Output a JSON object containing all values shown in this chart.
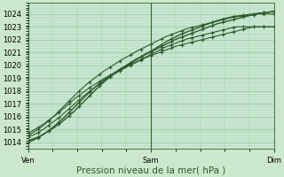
{
  "bg_color": "#cce8cc",
  "plot_bg_color": "#cce8d8",
  "grid_color": "#99cc99",
  "line_color": "#2d5a2d",
  "yticks": [
    1014,
    1015,
    1016,
    1017,
    1018,
    1019,
    1020,
    1021,
    1022,
    1023,
    1024
  ],
  "ylim": [
    1013.5,
    1024.8
  ],
  "xlim": [
    0,
    48
  ],
  "xlabel": "Pression niveau de la mer( hPa )",
  "xtick_labels": [
    "Ven",
    "Sam",
    "Dim"
  ],
  "xtick_positions": [
    0,
    24,
    48
  ],
  "vline_positions": [
    0,
    24,
    48
  ],
  "series": [
    [
      1014.1,
      1014.25,
      1014.4,
      1014.6,
      1014.85,
      1015.1,
      1015.4,
      1015.7,
      1016.05,
      1016.4,
      1016.8,
      1017.2,
      1017.6,
      1018.0,
      1018.4,
      1018.75,
      1019.1,
      1019.4,
      1019.65,
      1019.9,
      1020.15,
      1020.4,
      1020.65,
      1020.9,
      1021.1,
      1021.35,
      1021.6,
      1021.85,
      1022.05,
      1022.25,
      1022.45,
      1022.6,
      1022.75,
      1022.9,
      1023.05,
      1023.2,
      1023.35,
      1023.5,
      1023.6,
      1023.7,
      1023.8,
      1023.85,
      1023.9,
      1023.95,
      1024.0,
      1024.05,
      1024.1,
      1024.15,
      1024.2
    ],
    [
      1014.4,
      1014.55,
      1014.75,
      1015.0,
      1015.3,
      1015.6,
      1015.9,
      1016.25,
      1016.6,
      1016.95,
      1017.3,
      1017.65,
      1017.95,
      1018.25,
      1018.55,
      1018.85,
      1019.1,
      1019.35,
      1019.6,
      1019.85,
      1020.05,
      1020.25,
      1020.45,
      1020.65,
      1020.85,
      1021.05,
      1021.25,
      1021.45,
      1021.6,
      1021.75,
      1021.9,
      1022.05,
      1022.15,
      1022.25,
      1022.35,
      1022.45,
      1022.55,
      1022.65,
      1022.75,
      1022.85,
      1022.95,
      1023.0,
      1023.0,
      1023.0,
      1023.0,
      1023.0,
      1023.0,
      1023.0,
      1023.0
    ],
    [
      1014.7,
      1014.9,
      1015.15,
      1015.4,
      1015.7,
      1016.0,
      1016.3,
      1016.65,
      1017.0,
      1017.35,
      1017.65,
      1017.95,
      1018.25,
      1018.5,
      1018.75,
      1019.0,
      1019.2,
      1019.4,
      1019.6,
      1019.8,
      1020.0,
      1020.2,
      1020.4,
      1020.6,
      1020.75,
      1020.9,
      1021.05,
      1021.2,
      1021.35,
      1021.5,
      1021.6,
      1021.7,
      1021.8,
      1021.9,
      1022.0,
      1022.1,
      1022.2,
      1022.3,
      1022.4,
      1022.5,
      1022.6,
      1022.7,
      1022.8,
      1022.9,
      1023.0,
      1023.0,
      1023.0,
      1023.0,
      1023.0
    ],
    [
      1014.5,
      1014.75,
      1015.0,
      1015.3,
      1015.65,
      1016.0,
      1016.4,
      1016.8,
      1017.2,
      1017.6,
      1018.0,
      1018.35,
      1018.7,
      1019.0,
      1019.3,
      1019.6,
      1019.85,
      1020.1,
      1020.35,
      1020.6,
      1020.8,
      1021.05,
      1021.25,
      1021.45,
      1021.65,
      1021.85,
      1022.05,
      1022.25,
      1022.4,
      1022.55,
      1022.7,
      1022.85,
      1022.95,
      1023.05,
      1023.15,
      1023.25,
      1023.35,
      1023.45,
      1023.55,
      1023.65,
      1023.75,
      1023.8,
      1023.85,
      1023.9,
      1023.95,
      1024.0,
      1024.0,
      1024.0,
      1024.0
    ],
    [
      1014.0,
      1014.15,
      1014.35,
      1014.6,
      1014.9,
      1015.2,
      1015.55,
      1015.9,
      1016.3,
      1016.7,
      1017.1,
      1017.5,
      1017.9,
      1018.25,
      1018.6,
      1018.9,
      1019.2,
      1019.45,
      1019.7,
      1019.95,
      1020.2,
      1020.45,
      1020.65,
      1020.85,
      1021.05,
      1021.25,
      1021.45,
      1021.65,
      1021.85,
      1022.05,
      1022.2,
      1022.35,
      1022.5,
      1022.65,
      1022.8,
      1022.95,
      1023.1,
      1023.25,
      1023.35,
      1023.45,
      1023.55,
      1023.65,
      1023.75,
      1023.85,
      1023.95,
      1024.05,
      1024.1,
      1024.15,
      1024.2
    ]
  ],
  "marker_spacing": [
    2,
    2,
    2,
    2,
    2
  ],
  "linewidths": [
    1.0,
    0.8,
    0.8,
    0.8,
    1.0
  ],
  "font_size_ticks": 6,
  "font_size_xlabel": 7.5
}
